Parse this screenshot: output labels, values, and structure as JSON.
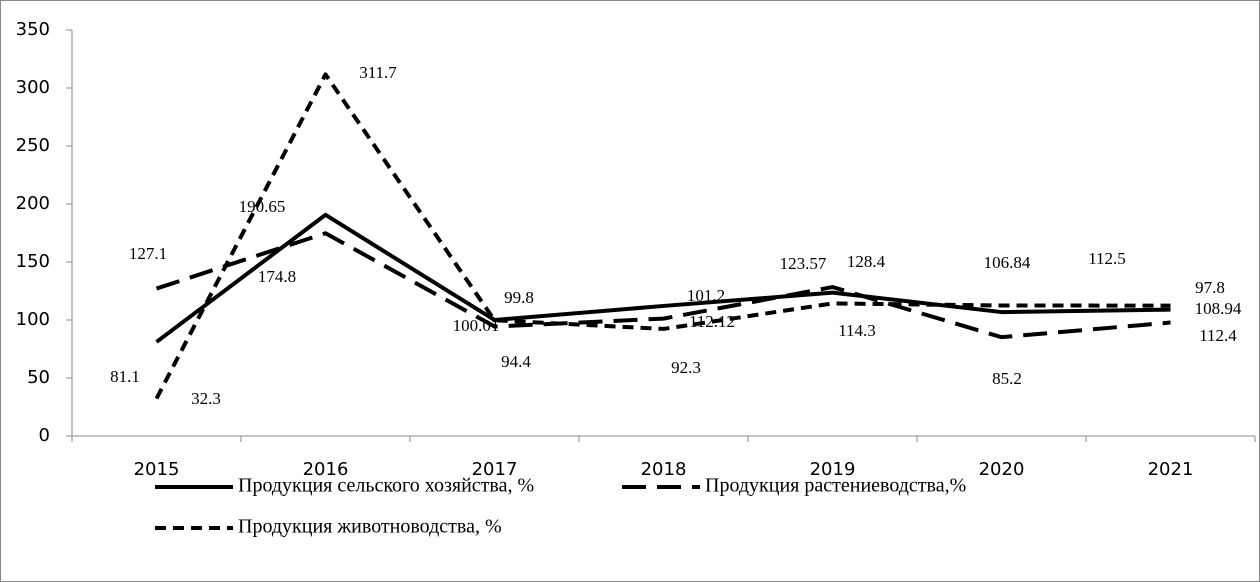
{
  "chart_data": {
    "type": "line",
    "categories": [
      "2015",
      "2016",
      "2017",
      "2018",
      "2019",
      "2020",
      "2021"
    ],
    "series": [
      {
        "name": "Продукция сельского хозяйства, %",
        "color": "#000000",
        "style": "solid",
        "values": [
          81.1,
          190.65,
          100.01,
          112.12,
          123.57,
          106.84,
          108.94
        ]
      },
      {
        "name": "Продукция растениеводства,%",
        "color": "#000000",
        "style": "long-dash",
        "values": [
          127.1,
          174.8,
          94.4,
          101.2,
          128.4,
          85.2,
          97.8
        ]
      },
      {
        "name": "Продукция животноводства, %",
        "color": "#000000",
        "style": "short-dash",
        "values": [
          32.3,
          311.7,
          99.8,
          92.3,
          114.3,
          112.5,
          112.4
        ]
      }
    ],
    "ylim": [
      0,
      350
    ],
    "yticks": [
      0,
      50,
      100,
      150,
      200,
      250,
      300,
      350
    ],
    "grid": false
  }
}
